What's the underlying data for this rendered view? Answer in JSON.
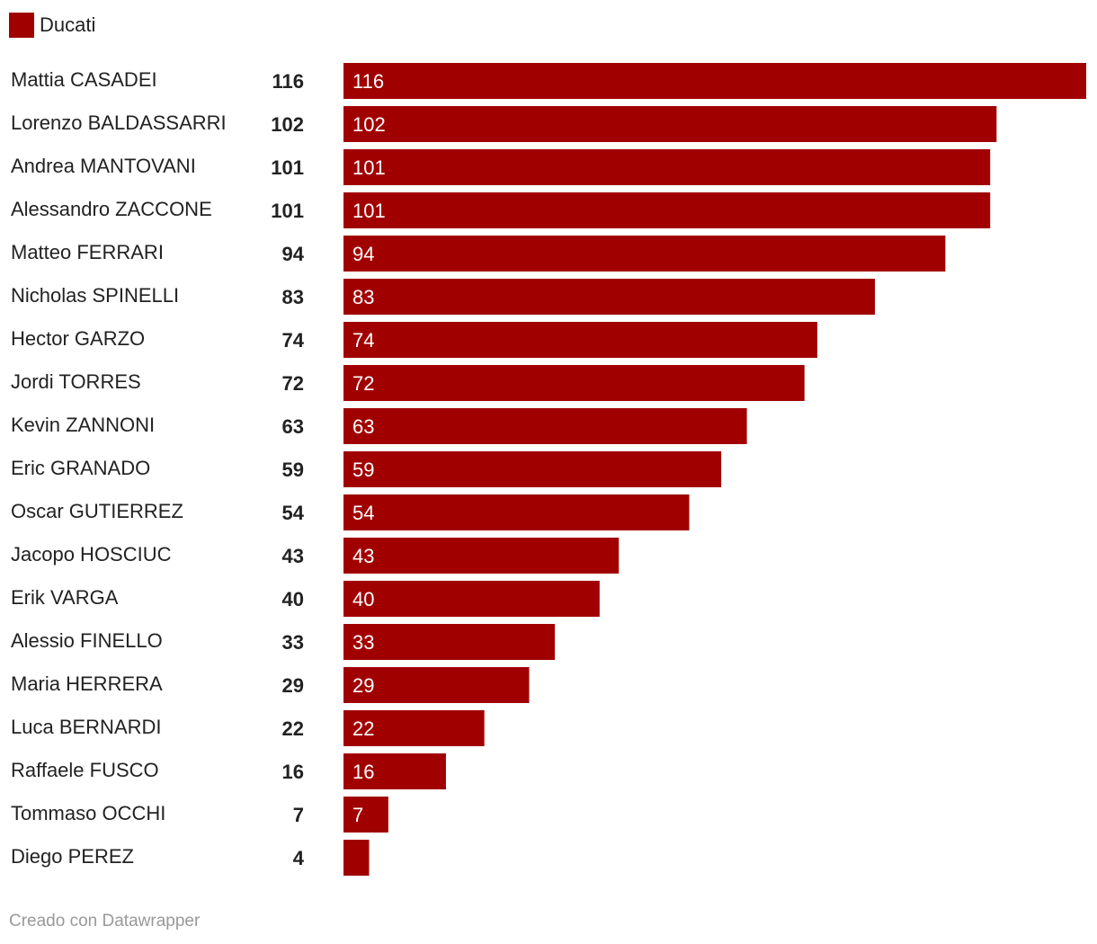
{
  "legend": {
    "label": "Ducati",
    "color": "#a10000"
  },
  "footer": "Creado con Datawrapper",
  "chart_data": {
    "type": "bar",
    "orientation": "horizontal",
    "categories": [
      "Mattia CASADEI",
      "Lorenzo BALDASSARRI",
      "Andrea MANTOVANI",
      "Alessandro ZACCONE",
      "Matteo FERRARI",
      "Nicholas SPINELLI",
      "Hector GARZO",
      "Jordi TORRES",
      "Kevin ZANNONI",
      "Eric GRANADO",
      "Oscar GUTIERREZ",
      "Jacopo HOSCIUC",
      "Erik VARGA",
      "Alessio FINELLO",
      "Maria HERRERA",
      "Luca BERNARDI",
      "Raffaele FUSCO",
      "Tommaso OCCHI",
      "Diego PEREZ"
    ],
    "series": [
      {
        "name": "Ducati",
        "color": "#a10000",
        "values": [
          116,
          102,
          101,
          101,
          94,
          83,
          74,
          72,
          63,
          59,
          54,
          43,
          40,
          33,
          29,
          22,
          16,
          7,
          4
        ]
      }
    ],
    "xlim": [
      0,
      116
    ],
    "grid": false,
    "legend_position": "top-left"
  }
}
